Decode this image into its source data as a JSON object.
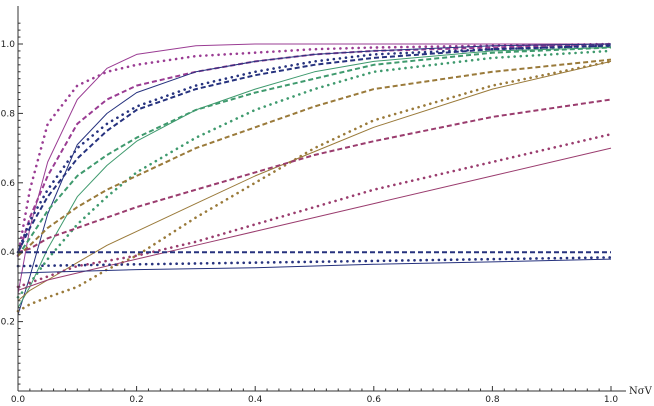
{
  "chart_data": {
    "type": "line",
    "title": "",
    "xlabel": "NσV",
    "ylabel": "",
    "xlim": [
      0,
      1.02
    ],
    "ylim": [
      0,
      1.07
    ],
    "grid": false,
    "legend": "none",
    "x_ticks": [
      "0.0",
      "0.2",
      "0.4",
      "0.6",
      "0.8",
      "1.0"
    ],
    "y_ticks": [
      "0.2",
      "0.4",
      "0.6",
      "0.8",
      "1.0"
    ],
    "series": [
      {
        "style": "solid",
        "color": "#9a3c93",
        "x": [
          0,
          0.02,
          0.05,
          0.1,
          0.15,
          0.2,
          0.3,
          0.4,
          0.5,
          0.6,
          0.8,
          1.0
        ],
        "y": [
          0.28,
          0.47,
          0.66,
          0.84,
          0.93,
          0.97,
          0.995,
          1.0,
          1.0,
          1.0,
          1.0,
          1.0
        ]
      },
      {
        "style": "dotted",
        "color": "#9a3c93",
        "x": [
          0,
          0.02,
          0.05,
          0.1,
          0.15,
          0.2,
          0.3,
          0.4,
          0.5,
          0.6,
          0.8,
          1.0
        ],
        "y": [
          0.39,
          0.58,
          0.77,
          0.88,
          0.92,
          0.94,
          0.965,
          0.975,
          0.985,
          0.99,
          0.995,
          1.0
        ]
      },
      {
        "style": "dashed",
        "color": "#9a3c93",
        "x": [
          0,
          0.02,
          0.05,
          0.1,
          0.15,
          0.2,
          0.3,
          0.4,
          0.5,
          0.6,
          0.8,
          1.0
        ],
        "y": [
          0.39,
          0.5,
          0.62,
          0.77,
          0.84,
          0.88,
          0.92,
          0.95,
          0.97,
          0.98,
          0.99,
          1.0
        ]
      },
      {
        "style": "solid",
        "color": "#26327e",
        "x": [
          0,
          0.02,
          0.05,
          0.1,
          0.15,
          0.2,
          0.3,
          0.4,
          0.5,
          0.6,
          0.8,
          1.0
        ],
        "y": [
          0.22,
          0.33,
          0.51,
          0.71,
          0.8,
          0.86,
          0.92,
          0.95,
          0.97,
          0.98,
          0.995,
          1.0
        ]
      },
      {
        "style": "dashed",
        "color": "#26327e",
        "x": [
          0,
          0.02,
          0.05,
          0.1,
          0.15,
          0.2,
          0.3,
          0.4,
          0.5,
          0.6,
          0.8,
          1.0
        ],
        "y": [
          0.4,
          0.47,
          0.56,
          0.67,
          0.75,
          0.81,
          0.87,
          0.91,
          0.94,
          0.96,
          0.985,
          0.995
        ]
      },
      {
        "style": "dotted",
        "color": "#26327e",
        "x": [
          0,
          0.02,
          0.05,
          0.1,
          0.15,
          0.2,
          0.3,
          0.4,
          0.5,
          0.6,
          0.8,
          1.0
        ],
        "y": [
          0.4,
          0.49,
          0.58,
          0.7,
          0.77,
          0.82,
          0.88,
          0.92,
          0.95,
          0.97,
          0.985,
          0.995
        ]
      },
      {
        "style": "solid",
        "color": "#3f9a6e",
        "x": [
          0,
          0.02,
          0.05,
          0.1,
          0.15,
          0.2,
          0.3,
          0.4,
          0.5,
          0.6,
          0.8,
          1.0
        ],
        "y": [
          0.24,
          0.3,
          0.41,
          0.56,
          0.65,
          0.72,
          0.81,
          0.87,
          0.92,
          0.95,
          0.98,
          0.99
        ]
      },
      {
        "style": "dashed",
        "color": "#3f9a6e",
        "x": [
          0,
          0.02,
          0.05,
          0.1,
          0.15,
          0.2,
          0.3,
          0.4,
          0.5,
          0.6,
          0.8,
          1.0
        ],
        "y": [
          0.39,
          0.44,
          0.52,
          0.62,
          0.68,
          0.73,
          0.81,
          0.86,
          0.9,
          0.94,
          0.975,
          0.99
        ]
      },
      {
        "style": "dotted",
        "color": "#3f9a6e",
        "x": [
          0,
          0.02,
          0.05,
          0.1,
          0.15,
          0.2,
          0.3,
          0.4,
          0.5,
          0.6,
          0.8,
          1.0
        ],
        "y": [
          0.27,
          0.31,
          0.38,
          0.48,
          0.56,
          0.63,
          0.73,
          0.81,
          0.87,
          0.92,
          0.96,
          0.98
        ]
      },
      {
        "style": "dashed",
        "color": "#9a7a3a",
        "x": [
          0,
          0.02,
          0.05,
          0.1,
          0.15,
          0.2,
          0.3,
          0.4,
          0.5,
          0.6,
          0.8,
          1.0
        ],
        "y": [
          0.39,
          0.42,
          0.47,
          0.53,
          0.58,
          0.62,
          0.7,
          0.76,
          0.82,
          0.87,
          0.92,
          0.955
        ]
      },
      {
        "style": "solid",
        "color": "#9a7a3a",
        "x": [
          0,
          0.02,
          0.05,
          0.1,
          0.15,
          0.2,
          0.3,
          0.4,
          0.5,
          0.6,
          0.8,
          1.0
        ],
        "y": [
          0.26,
          0.29,
          0.32,
          0.37,
          0.42,
          0.46,
          0.54,
          0.62,
          0.69,
          0.76,
          0.87,
          0.95
        ]
      },
      {
        "style": "dotted",
        "color": "#9a7a3a",
        "x": [
          0,
          0.02,
          0.05,
          0.1,
          0.15,
          0.2,
          0.3,
          0.4,
          0.5,
          0.6,
          0.8,
          1.0
        ],
        "y": [
          0.23,
          0.25,
          0.27,
          0.3,
          0.35,
          0.39,
          0.5,
          0.6,
          0.7,
          0.78,
          0.88,
          0.95
        ]
      },
      {
        "style": "dashed",
        "color": "#9a3c6e",
        "x": [
          0,
          0.02,
          0.05,
          0.1,
          0.15,
          0.2,
          0.3,
          0.4,
          0.5,
          0.6,
          0.8,
          1.0
        ],
        "y": [
          0.4,
          0.41,
          0.44,
          0.47,
          0.5,
          0.53,
          0.58,
          0.63,
          0.68,
          0.72,
          0.79,
          0.84
        ]
      },
      {
        "style": "dotted",
        "color": "#9a3c6e",
        "x": [
          0,
          0.05,
          0.1,
          0.2,
          0.3,
          0.4,
          0.5,
          0.6,
          0.8,
          1.0
        ],
        "y": [
          0.3,
          0.33,
          0.36,
          0.39,
          0.43,
          0.48,
          0.53,
          0.58,
          0.66,
          0.74
        ]
      },
      {
        "style": "solid",
        "color": "#9a3c6e",
        "x": [
          0,
          0.05,
          0.1,
          0.2,
          0.3,
          0.4,
          0.5,
          0.6,
          0.8,
          1.0
        ],
        "y": [
          0.29,
          0.32,
          0.34,
          0.38,
          0.42,
          0.46,
          0.5,
          0.54,
          0.62,
          0.7
        ]
      },
      {
        "style": "dashed",
        "color": "#26327e",
        "x": [
          0,
          0.2,
          0.4,
          0.6,
          0.8,
          1.0
        ],
        "y": [
          0.4,
          0.4,
          0.4,
          0.4,
          0.4,
          0.4
        ]
      },
      {
        "style": "dotted",
        "color": "#26327e",
        "x": [
          0,
          0.2,
          0.4,
          0.6,
          0.8,
          1.0
        ],
        "y": [
          0.36,
          0.365,
          0.37,
          0.375,
          0.38,
          0.385
        ]
      },
      {
        "style": "solid",
        "color": "#26327e",
        "x": [
          0,
          0.2,
          0.4,
          0.6,
          0.8,
          1.0
        ],
        "y": [
          0.34,
          0.35,
          0.355,
          0.365,
          0.372,
          0.38
        ]
      }
    ]
  }
}
